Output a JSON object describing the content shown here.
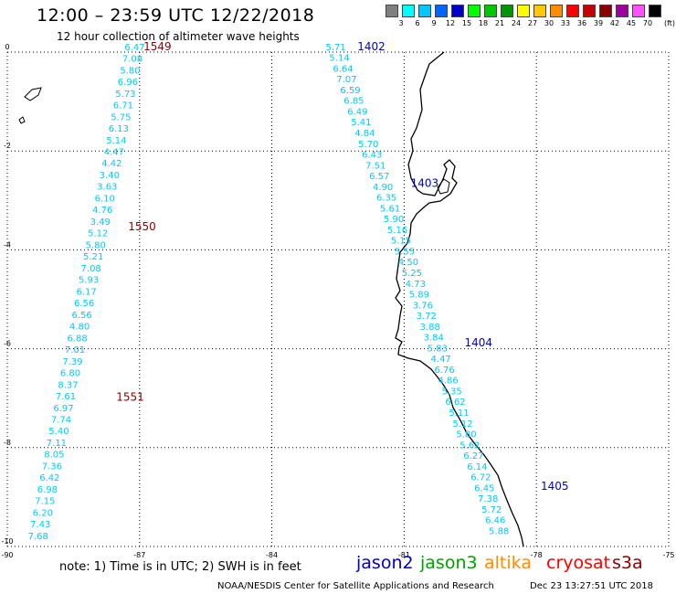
{
  "header": {
    "title": "12:00 – 23:59 UTC 12/22/2018",
    "subtitle": "12 hour collection of altimeter wave heights"
  },
  "legend": {
    "unit": "(ft)",
    "bins": [
      {
        "label": "",
        "color": "#7f7f7f"
      },
      {
        "label": "3",
        "color": "#00ffff"
      },
      {
        "label": "6",
        "color": "#00c8ff"
      },
      {
        "label": "9",
        "color": "#0064ff"
      },
      {
        "label": "12",
        "color": "#0000c8"
      },
      {
        "label": "15",
        "color": "#00ff00"
      },
      {
        "label": "18",
        "color": "#00c800"
      },
      {
        "label": "21",
        "color": "#009600"
      },
      {
        "label": "24",
        "color": "#ffff00"
      },
      {
        "label": "27",
        "color": "#ffc800"
      },
      {
        "label": "30",
        "color": "#ff8c00"
      },
      {
        "label": "33",
        "color": "#ff0000"
      },
      {
        "label": "36",
        "color": "#c80000"
      },
      {
        "label": "39",
        "color": "#8b0000"
      },
      {
        "label": "42",
        "color": "#a000a0"
      },
      {
        "label": "45",
        "color": "#ff50ff"
      },
      {
        "label": "70",
        "color": "#000000"
      }
    ]
  },
  "map": {
    "lon_min": -90,
    "lon_max": -75,
    "lat_min": -10,
    "lat_max": 0,
    "x_ticks": [
      "-90",
      "-87",
      "-84",
      "-81",
      "-78",
      "-75"
    ],
    "y_ticks": [
      "0",
      "-2",
      "-4",
      "-6",
      "-8",
      "-10"
    ],
    "grid": "dotted",
    "label_color": "#00c8ff"
  },
  "tracks": [
    {
      "id": "west",
      "time_labels": [
        {
          "text": "1549",
          "color": "#8b0000",
          "lon": -86.91,
          "lat": 0.04
        },
        {
          "text": "1550",
          "color": "#8b0000",
          "lon": -87.26,
          "lat": -3.6
        },
        {
          "text": "1551",
          "color": "#8b0000",
          "lon": -87.53,
          "lat": -7.05
        }
      ],
      "start": {
        "lon": -87.11,
        "lat": 0.04
      },
      "end": {
        "lon": -89.3,
        "lat": -9.85
      },
      "values": [
        "6.47",
        "7.08",
        "5.80",
        "6.96",
        "5.73",
        "6.71",
        "5.75",
        "6.13",
        "5.14",
        "4.47",
        "4.42",
        "3.40",
        "3.63",
        "6.10",
        "4.76",
        "3.49",
        "5.12",
        "5.80",
        "5.21",
        "7.08",
        "5.93",
        "6.17",
        "6.56",
        "6.56",
        "4.80",
        "6.88",
        "7.01",
        "7.39",
        "6.80",
        "8.37",
        "7.61",
        "6.97",
        "7.74",
        "5.40",
        "7.11",
        "8.05",
        "7.36",
        "6.42",
        "6.98",
        "7.15",
        "6.20",
        "7.43",
        "7.68"
      ]
    },
    {
      "id": "east",
      "time_labels": [
        {
          "text": "1402",
          "color": "#0000c8",
          "lon": -82.06,
          "lat": 0.04
        },
        {
          "text": "1403",
          "color": "#0000c8",
          "lon": -80.85,
          "lat": -2.73
        },
        {
          "text": "1404",
          "color": "#0000c8",
          "lon": -79.63,
          "lat": -5.95
        },
        {
          "text": "1405",
          "color": "#0000c8",
          "lon": -77.9,
          "lat": -8.85
        }
      ],
      "start": {
        "lon": -82.55,
        "lat": 0.04
      },
      "end": {
        "lon": -78.85,
        "lat": -9.75
      },
      "values": [
        "5.71",
        "5.14",
        "6.64",
        "7.07",
        "6.59",
        "6.85",
        "6.49",
        "5.41",
        "4.84",
        "5.70",
        "6.43",
        "7.51",
        "6.57",
        "4.90",
        "6.35",
        "5.61",
        "5.90",
        "5.16",
        "5.15",
        "5.55",
        "4.50",
        "5.25",
        "4.73",
        "5.89",
        "3.76",
        "3.72",
        "3.88",
        "3.84",
        "5.83",
        "4.47",
        "6.76",
        "4.86",
        "5.35",
        "6.62",
        "5.11",
        "5.12",
        "5.80",
        "5.62",
        "6.27",
        "6.14",
        "6.72",
        "6.45",
        "7.38",
        "5.72",
        "6.46",
        "5.88"
      ]
    }
  ],
  "footer": {
    "note": "note:  1) Time is in UTC;  2) SWH is in feet",
    "satellites": [
      {
        "name": "jason2",
        "color": "#0000c8"
      },
      {
        "name": "jason3",
        "color": "#00a000"
      },
      {
        "name": "altika",
        "color": "#ff8c00"
      },
      {
        "name": "cryosat",
        "color": "#ff0000"
      },
      {
        "name": "s3a",
        "color": "#8b0000"
      }
    ],
    "credit": "NOAA/NESDIS Center for Satellite Applications and Research",
    "timestamp": "Dec 23 13:27:51 UTC 2018"
  }
}
